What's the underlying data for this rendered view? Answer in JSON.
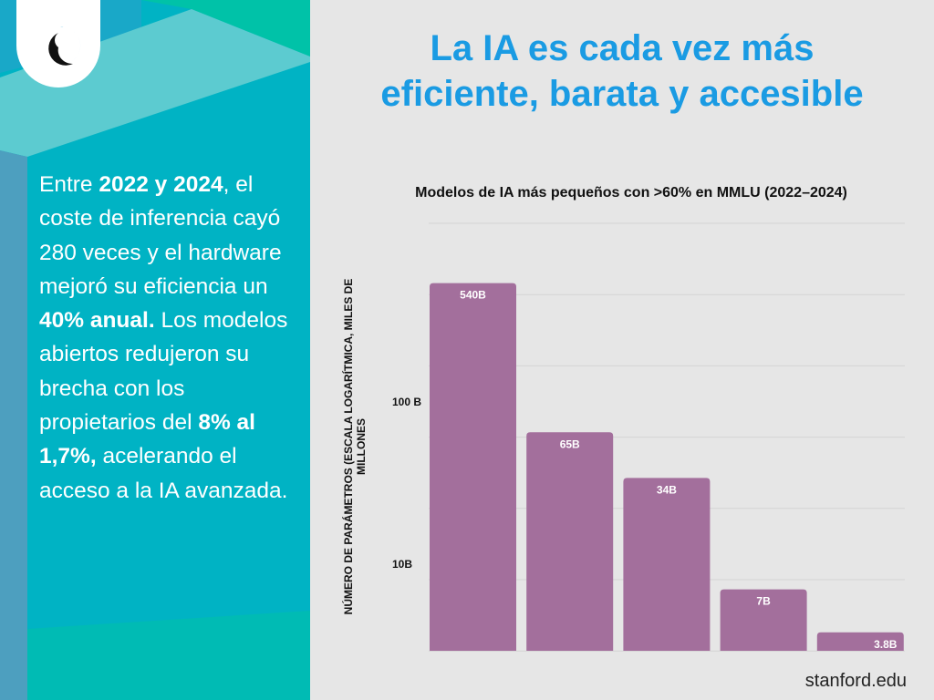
{
  "left_panel": {
    "parts": [
      {
        "text": "Entre ",
        "bold": false
      },
      {
        "text": "2022 y 2024",
        "bold": true
      },
      {
        "text": ", el coste de inferencia cayó 280 veces y el hardware mejoró su eficiencia un ",
        "bold": false
      },
      {
        "text": "40% anual.",
        "bold": true
      },
      {
        "text": " Los modelos abiertos redujeron su brecha con los propietarios del ",
        "bold": false
      },
      {
        "text": "8% al 1,7%,",
        "bold": true
      },
      {
        "text": " acelerando el acceso a la IA avanzada.",
        "bold": false
      }
    ]
  },
  "header": {
    "title_line1": "La IA es cada vez más",
    "title_line2": "eficiente, barata y accesible"
  },
  "source": "stanford.edu",
  "colors": {
    "title": "#1a9be3",
    "bar": "#a36f9c",
    "panel": "#00b3c4",
    "background": "#e6e6e6"
  },
  "chart_data": {
    "type": "bar",
    "title": "Modelos de IA más pequeños con >60% en MMLU (2022–2024)",
    "ylabel": "NÚMERO DE PARÁMETROS (ESCALA LOGARÍTMICA, MILES DE MILLONES",
    "yscale": "log",
    "yticks": [
      {
        "value": 100,
        "label": "100 B"
      },
      {
        "value": 10,
        "label": "10B"
      }
    ],
    "categories": [
      "",
      "",
      "",
      "",
      ""
    ],
    "values": [
      540,
      65,
      34,
      7,
      3.8
    ],
    "data_labels": [
      "540B",
      "65B",
      "34B",
      "7B",
      "3.8B"
    ],
    "grid": true
  }
}
